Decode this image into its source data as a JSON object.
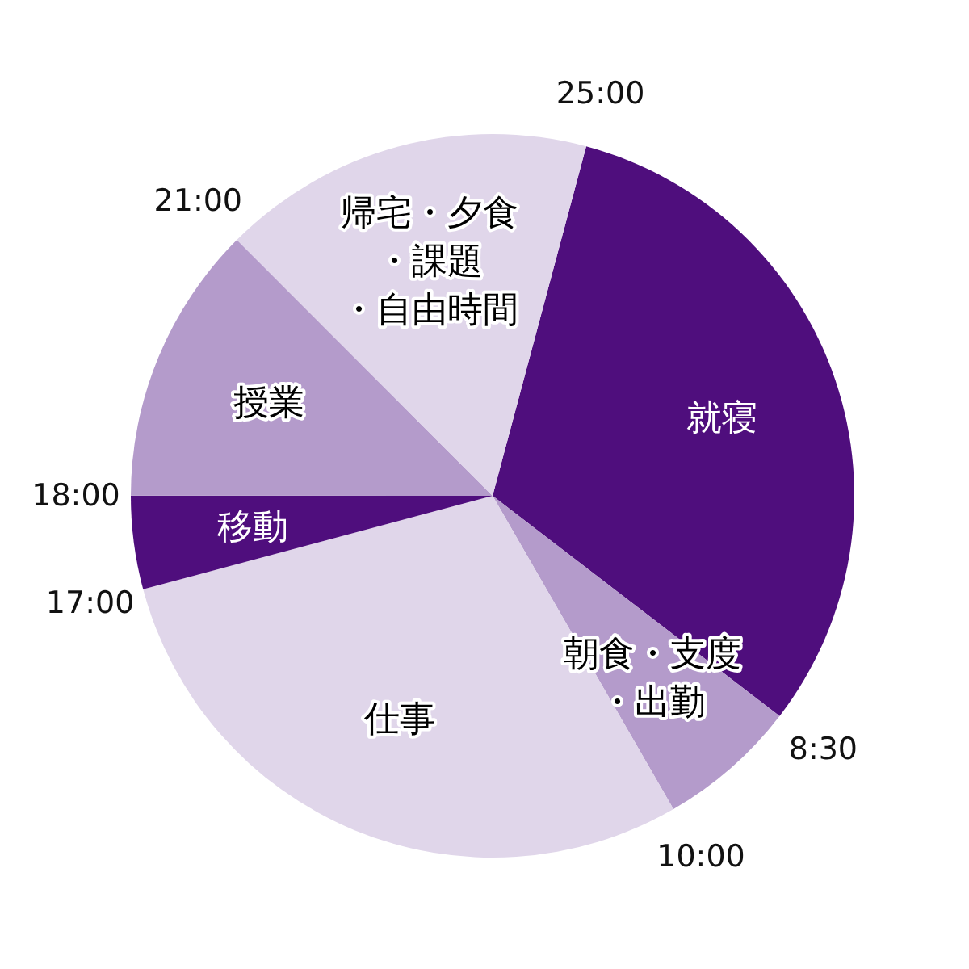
{
  "chart_data": {
    "type": "pie",
    "categories": [
      "就寝",
      "朝食・支度・出勤",
      "仕事",
      "移動",
      "授業",
      "帰宅・夕食・課題・自由時間"
    ],
    "values": [
      31.25,
      6.25,
      29.17,
      4.17,
      12.5,
      16.66
    ],
    "colors": [
      "#4f0e7d",
      "#b49bcb",
      "#e0d6ea",
      "#4f0e7d",
      "#b49bcb",
      "#e0d6ea"
    ],
    "annotations": [
      "8:30",
      "10:00",
      "17:00",
      "18:00",
      "21:00",
      "25:00"
    ]
  }
}
